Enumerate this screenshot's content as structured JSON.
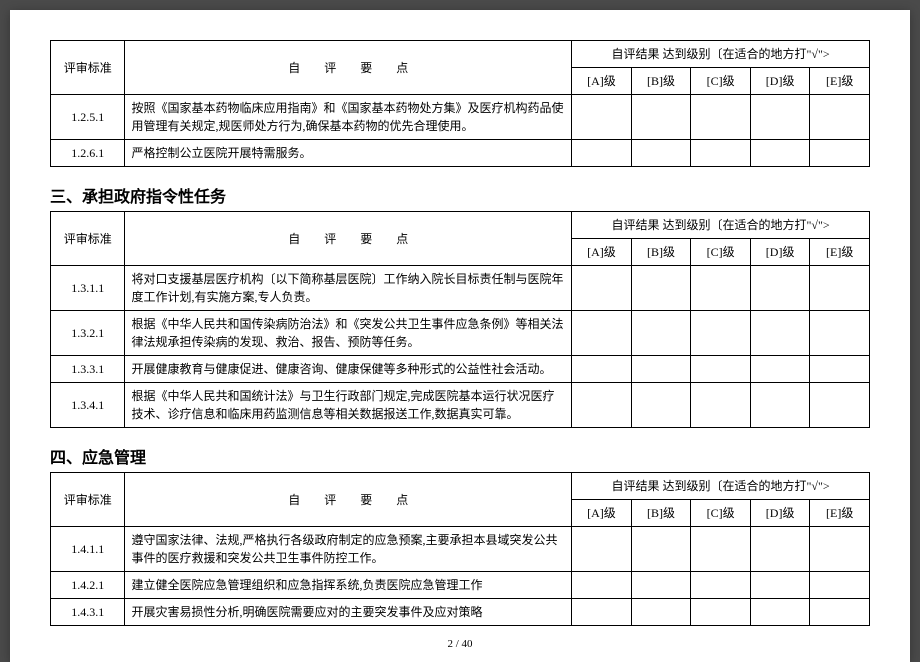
{
  "header": {
    "col1": "评审标准",
    "col2": "自评要点",
    "result_header": "自评结果 达到级别〔在适合的地方打\"√\">",
    "grades": [
      "[A]级",
      "[B]级",
      "[C]级",
      "[D]级",
      "[E]级"
    ]
  },
  "table1": {
    "rows": [
      {
        "code": "1.2.5.1",
        "desc": "按照《国家基本药物临床应用指南》和《国家基本药物处方集》及医疗机构药品使用管理有关规定,规医师处方行为,确保基本药物的优先合理使用。"
      },
      {
        "code": "1.2.6.1",
        "desc": "严格控制公立医院开展特需服务。"
      }
    ]
  },
  "section2": {
    "title": "三、承担政府指令性任务",
    "rows": [
      {
        "code": "1.3.1.1",
        "desc": "将对口支援基层医疗机构〔以下简称基层医院〕工作纳入院长目标责任制与医院年度工作计划,有实施方案,专人负责。"
      },
      {
        "code": "1.3.2.1",
        "desc": "根据《中华人民共和国传染病防治法》和《突发公共卫生事件应急条例》等相关法律法规承担传染病的发现、救治、报告、预防等任务。"
      },
      {
        "code": "1.3.3.1",
        "desc": "开展健康教育与健康促进、健康咨询、健康保健等多种形式的公益性社会活动。"
      },
      {
        "code": "1.3.4.1",
        "desc": "根据《中华人民共和国统计法》与卫生行政部门规定,完成医院基本运行状况医疗技术、诊疗信息和临床用药监测信息等相关数据报送工作,数据真实可靠。"
      }
    ]
  },
  "section3": {
    "title": "四、应急管理",
    "rows": [
      {
        "code": "1.4.1.1",
        "desc": "遵守国家法律、法规,严格执行各级政府制定的应急预案,主要承担本县域突发公共事件的医疗救援和突发公共卫生事件防控工作。"
      },
      {
        "code": "1.4.2.1",
        "desc": "建立健全医院应急管理组织和应急指挥系统,负责医院应急管理工作"
      },
      {
        "code": "1.4.3.1",
        "desc": "开展灾害易损性分析,明确医院需要应对的主要突发事件及应对策略"
      }
    ]
  },
  "pagination": "2 / 40"
}
